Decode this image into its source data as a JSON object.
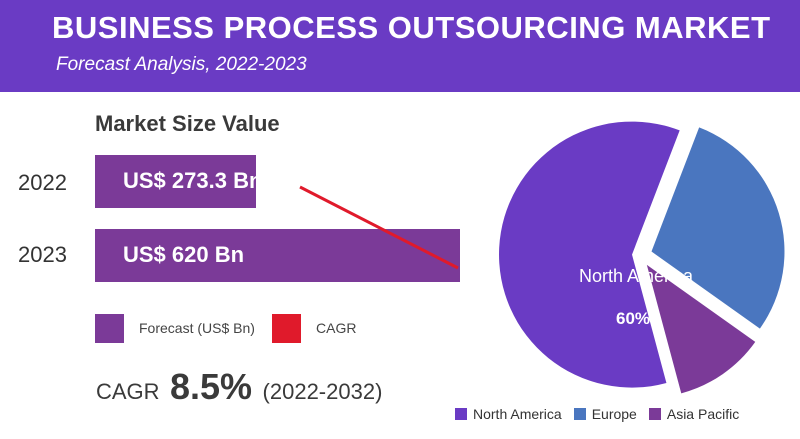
{
  "header": {
    "title": "BUSINESS PROCESS OUTSOURCING MARKET",
    "subtitle": "Forecast Analysis, 2022-2023"
  },
  "colors": {
    "header_bg": "#6a3bc4",
    "bar": "#7b3a98",
    "cagr_line": "#e01a2b",
    "north_america": "#6a3bc4",
    "europe": "#4a76bf",
    "asia_pacific": "#7b3a98"
  },
  "chart_data": [
    {
      "type": "bar",
      "title": "Market Size Value",
      "orientation": "horizontal",
      "categories": [
        "2022",
        "2023"
      ],
      "values": [
        273.3,
        620
      ],
      "value_labels": [
        "US$ 273.3 Bn",
        "US$ 620 Bn"
      ],
      "series": [
        {
          "name": "Forecast (US$ Bn)",
          "values": [
            273.3,
            620
          ]
        }
      ],
      "trend_series": {
        "name": "CAGR"
      },
      "legend": {
        "position": "bottom",
        "items": [
          {
            "label": "Forecast (US$ Bn)",
            "color": "#7b3a98"
          },
          {
            "label": "CAGR",
            "color": "#e01a2b"
          }
        ]
      },
      "xlim": [
        0,
        620
      ],
      "grid": false
    },
    {
      "type": "pie",
      "categories": [
        "North America",
        "Europe",
        "Asia Pacific"
      ],
      "values": [
        60,
        29,
        11
      ],
      "colors": [
        "#6a3bc4",
        "#4a76bf",
        "#7b3a98"
      ],
      "labels": [
        {
          "category": "North America",
          "text": "60%"
        }
      ],
      "legend": {
        "position": "bottom"
      }
    }
  ],
  "cagr": {
    "label": "CAGR",
    "value": "8.5%",
    "range": "(2022-2032)"
  }
}
